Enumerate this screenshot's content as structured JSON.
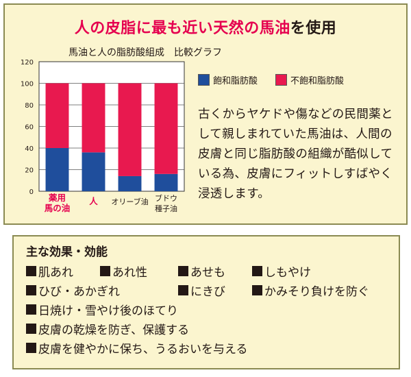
{
  "header": {
    "title_highlight": "人の皮脂に最も近い天然の馬油",
    "title_rest": "を使用",
    "subtitle": "馬油と人の脂肪酸組成　比較グラフ"
  },
  "colors": {
    "saturated": "#1f4e9c",
    "unsaturated": "#e8194f",
    "accent": "#e5004f",
    "panel_bg": "#fbf5cf",
    "panel_border": "#8a8a52"
  },
  "chart_data": {
    "type": "bar",
    "stacked": true,
    "categories": [
      "薬用\n馬の油",
      "人",
      "オリーブ油",
      "ブドウ\n種子油"
    ],
    "highlight_categories": [
      0,
      1
    ],
    "series": [
      {
        "name": "飽和脂肪酸",
        "values": [
          40,
          36,
          14,
          16
        ]
      },
      {
        "name": "不飽和脂肪酸",
        "values": [
          60,
          64,
          86,
          84
        ]
      }
    ],
    "ylim": [
      0,
      120
    ],
    "yticks": [
      0,
      20,
      40,
      60,
      80,
      100,
      120
    ],
    "grid": true,
    "legend_position": "right"
  },
  "description": "古くからヤケドや傷などの民間薬として親しまれていた馬油は、人間の皮膚と同じ脂肪酸の組織が酷似している為、皮膚にフィットしすばやく浸透します。",
  "effects": {
    "title": "主な効果・効能",
    "rows": [
      [
        "肌あれ",
        "あれ性",
        "あせも",
        "しもやけ"
      ],
      [
        "ひび・あかぎれ",
        "にきび",
        "かみそり負けを防ぐ"
      ],
      [
        "日焼け・雪やけ後のほてり"
      ],
      [
        "皮膚の乾燥を防ぎ、保護する"
      ],
      [
        "皮膚を健やかに保ち、うるおいを与える"
      ]
    ]
  }
}
